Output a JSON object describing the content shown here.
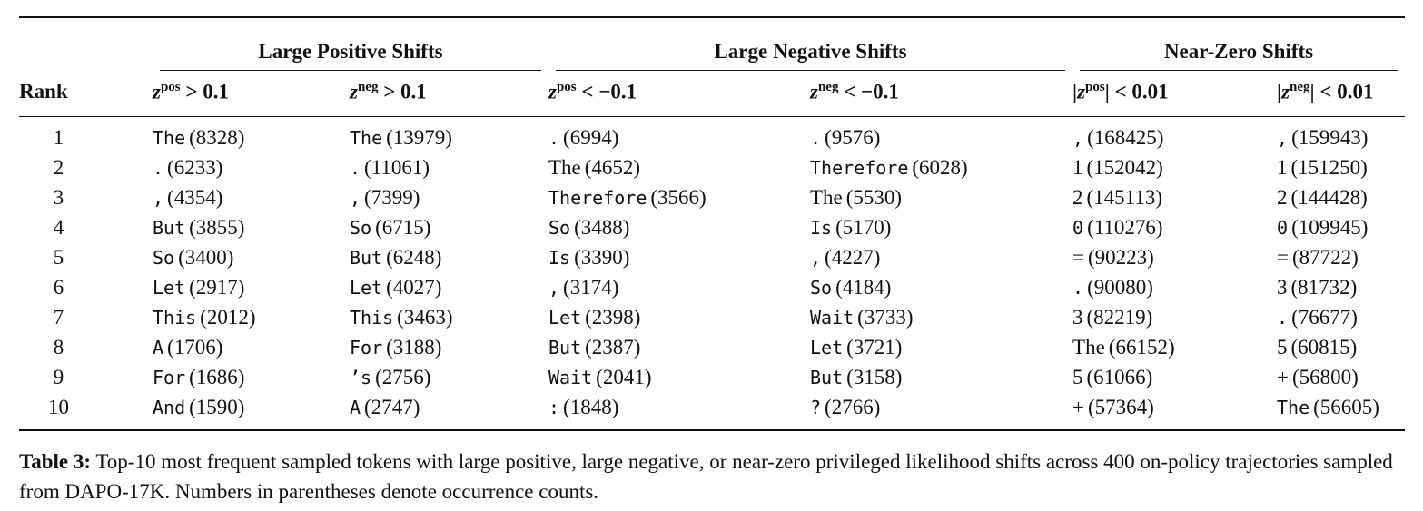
{
  "table": {
    "groups": {
      "positive": "Large Positive Shifts",
      "negative": "Large Negative Shifts",
      "zero": "Near-Zero Shifts"
    },
    "rank_header": "Rank",
    "conditions": [
      {
        "var": "z",
        "sup": "pos",
        "op": " > 0.1",
        "abs": false
      },
      {
        "var": "z",
        "sup": "neg",
        "op": " > 0.1",
        "abs": false
      },
      {
        "var": "z",
        "sup": "pos",
        "op": " < −0.1",
        "abs": false
      },
      {
        "var": "z",
        "sup": "neg",
        "op": " < −0.1",
        "abs": false
      },
      {
        "var": "z",
        "sup": "pos",
        "op": " < 0.01",
        "abs": true
      },
      {
        "var": "z",
        "sup": "neg",
        "op": " < 0.01",
        "abs": true
      }
    ],
    "rows": [
      {
        "rank": "1",
        "cells": [
          {
            "tok": "The",
            "count": "(8328)",
            "mono": true
          },
          {
            "tok": "The",
            "count": "(13979)",
            "mono": true
          },
          {
            "tok": ".",
            "count": "(6994)",
            "mono": true
          },
          {
            "tok": ".",
            "count": "(9576)",
            "mono": true
          },
          {
            "tok": ",",
            "count": "(168425)",
            "mono": true
          },
          {
            "tok": ",",
            "count": "(159943)",
            "mono": true
          }
        ]
      },
      {
        "rank": "2",
        "cells": [
          {
            "tok": ".",
            "count": "(6233)",
            "mono": true
          },
          {
            "tok": ".",
            "count": "(11061)",
            "mono": true
          },
          {
            "tok": "The",
            "count": "(4652)",
            "mono": false
          },
          {
            "tok": "Therefore",
            "count": "(6028)",
            "mono": true
          },
          {
            "tok": "1",
            "count": "(152042)",
            "mono": false
          },
          {
            "tok": "1",
            "count": "(151250)",
            "mono": false
          }
        ]
      },
      {
        "rank": "3",
        "cells": [
          {
            "tok": ",",
            "count": "(4354)",
            "mono": true
          },
          {
            "tok": ",",
            "count": "(7399)",
            "mono": true
          },
          {
            "tok": "Therefore",
            "count": "(3566)",
            "mono": true
          },
          {
            "tok": "The",
            "count": "(5530)",
            "mono": false
          },
          {
            "tok": "2",
            "count": "(145113)",
            "mono": false
          },
          {
            "tok": "2",
            "count": "(144428)",
            "mono": false
          }
        ]
      },
      {
        "rank": "4",
        "cells": [
          {
            "tok": "But",
            "count": "(3855)",
            "mono": true
          },
          {
            "tok": "So",
            "count": "(6715)",
            "mono": true
          },
          {
            "tok": "So",
            "count": "(3488)",
            "mono": true
          },
          {
            "tok": "Is",
            "count": "(5170)",
            "mono": true
          },
          {
            "tok": "0",
            "count": "(110276)",
            "mono": true
          },
          {
            "tok": "0",
            "count": "(109945)",
            "mono": true
          }
        ]
      },
      {
        "rank": "5",
        "cells": [
          {
            "tok": "So",
            "count": "(3400)",
            "mono": true
          },
          {
            "tok": "But",
            "count": "(6248)",
            "mono": true
          },
          {
            "tok": "Is",
            "count": "(3390)",
            "mono": true
          },
          {
            "tok": ",",
            "count": "(4227)",
            "mono": true
          },
          {
            "tok": "=",
            "count": "(90223)",
            "mono": false
          },
          {
            "tok": "=",
            "count": "(87722)",
            "mono": false
          }
        ]
      },
      {
        "rank": "6",
        "cells": [
          {
            "tok": "Let",
            "count": "(2917)",
            "mono": true
          },
          {
            "tok": "Let",
            "count": "(4027)",
            "mono": true
          },
          {
            "tok": ",",
            "count": "(3174)",
            "mono": true
          },
          {
            "tok": "So",
            "count": "(4184)",
            "mono": true
          },
          {
            "tok": ".",
            "count": "(90080)",
            "mono": true
          },
          {
            "tok": "3",
            "count": "(81732)",
            "mono": false
          }
        ]
      },
      {
        "rank": "7",
        "cells": [
          {
            "tok": "This",
            "count": "(2012)",
            "mono": true
          },
          {
            "tok": "This",
            "count": "(3463)",
            "mono": true
          },
          {
            "tok": "Let",
            "count": "(2398)",
            "mono": true
          },
          {
            "tok": "Wait",
            "count": "(3733)",
            "mono": true
          },
          {
            "tok": "3",
            "count": "(82219)",
            "mono": false
          },
          {
            "tok": ".",
            "count": "(76677)",
            "mono": true
          }
        ]
      },
      {
        "rank": "8",
        "cells": [
          {
            "tok": "A",
            "count": "(1706)",
            "mono": true
          },
          {
            "tok": "For",
            "count": "(3188)",
            "mono": true
          },
          {
            "tok": "But",
            "count": "(2387)",
            "mono": true
          },
          {
            "tok": "Let",
            "count": "(3721)",
            "mono": true
          },
          {
            "tok": "The",
            "count": "(66152)",
            "mono": false
          },
          {
            "tok": "5",
            "count": "(60815)",
            "mono": false
          }
        ]
      },
      {
        "rank": "9",
        "cells": [
          {
            "tok": "For",
            "count": "(1686)",
            "mono": true
          },
          {
            "tok": "’s",
            "count": "(2756)",
            "mono": true
          },
          {
            "tok": "Wait",
            "count": "(2041)",
            "mono": true
          },
          {
            "tok": "But",
            "count": "(3158)",
            "mono": true
          },
          {
            "tok": "5",
            "count": "(61066)",
            "mono": false
          },
          {
            "tok": "+",
            "count": "(56800)",
            "mono": false
          }
        ]
      },
      {
        "rank": "10",
        "cells": [
          {
            "tok": "And",
            "count": "(1590)",
            "mono": true
          },
          {
            "tok": "A",
            "count": "(2747)",
            "mono": true
          },
          {
            "tok": ":",
            "count": "(1848)",
            "mono": true
          },
          {
            "tok": "?",
            "count": "(2766)",
            "mono": true
          },
          {
            "tok": "+",
            "count": "(57364)",
            "mono": false
          },
          {
            "tok": "The",
            "count": "(56605)",
            "mono": true
          }
        ]
      }
    ]
  },
  "caption": {
    "label": "Table 3:",
    "text": " Top-10 most frequent sampled tokens with large positive, large negative, or near-zero privileged likelihood shifts across 400 on-policy trajectories sampled from DAPO-17K. Numbers in parentheses denote occurrence counts."
  }
}
